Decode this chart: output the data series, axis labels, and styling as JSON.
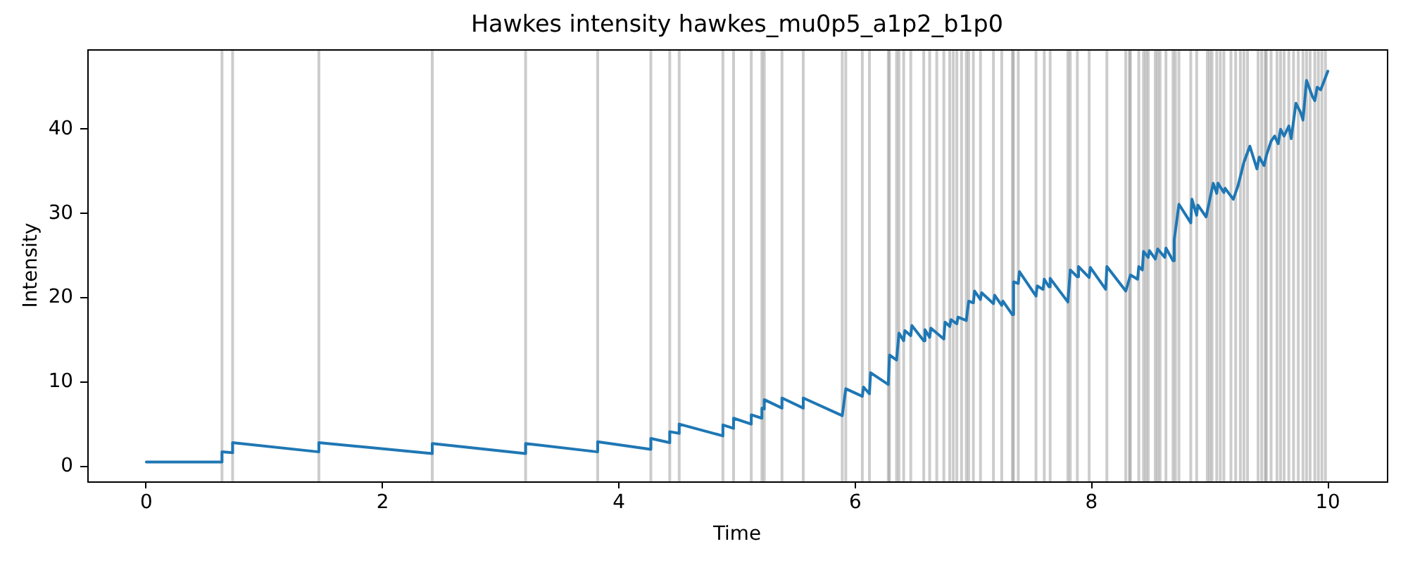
{
  "chart_data": {
    "type": "line",
    "title": "Hawkes intensity hawkes_mu0p5_a1p2_b1p0",
    "xlabel": "Time",
    "ylabel": "Intensity",
    "xlim": [
      -0.5,
      10.5
    ],
    "xticks": [
      0,
      2,
      4,
      6,
      8,
      10
    ],
    "ylim": [
      -1.8,
      49.5
    ],
    "yticks": [
      0,
      10,
      20,
      30,
      40
    ],
    "x": [
      0,
      0.64,
      0.64,
      0.73,
      0.73,
      1.46,
      1.46,
      2.42,
      2.42,
      3.21,
      3.21,
      3.82,
      3.82,
      4.27,
      4.27,
      4.43,
      4.43,
      4.51,
      4.51,
      4.88,
      4.88,
      4.97,
      4.97,
      5.12,
      5.12,
      5.21,
      5.21,
      5.23,
      5.23,
      5.38,
      5.38,
      5.56,
      5.56,
      5.89,
      5.92,
      6.06,
      6.07,
      6.12,
      6.13,
      6.28,
      6.29,
      6.35,
      6.37,
      6.41,
      6.42,
      6.47,
      6.48,
      6.58,
      6.59,
      6.63,
      6.64,
      6.75,
      6.76,
      6.8,
      6.81,
      6.86,
      6.87,
      6.94,
      6.96,
      7.0,
      7.01,
      7.06,
      7.07,
      7.17,
      7.18,
      7.24,
      7.25,
      7.33,
      7.34,
      7.38,
      7.39,
      7.53,
      7.54,
      7.59,
      7.6,
      7.64,
      7.65,
      7.8,
      7.82,
      7.88,
      7.89,
      7.98,
      7.99,
      8.12,
      8.13,
      8.29,
      8.33,
      8.39,
      8.4,
      8.43,
      8.44,
      8.48,
      8.49,
      8.54,
      8.56,
      8.62,
      8.63,
      8.69,
      8.7,
      8.74,
      8.84,
      8.85,
      8.89,
      8.9,
      8.97,
      9.03,
      9.06,
      9.07,
      9.12,
      9.13,
      9.2,
      9.24,
      9.29,
      9.34,
      9.4,
      9.42,
      9.46,
      9.48,
      9.52,
      9.55,
      9.58,
      9.6,
      9.63,
      9.67,
      9.69,
      9.73,
      9.77,
      9.79,
      9.82,
      9.87,
      9.89,
      9.91,
      9.94,
      10
    ],
    "series": [
      {
        "color": "#1f77b4",
        "values": [
          0.5,
          0.5,
          1.7,
          1.6,
          2.8,
          1.7,
          2.8,
          1.5,
          2.7,
          1.5,
          2.7,
          1.7,
          2.9,
          2.0,
          3.3,
          2.8,
          4.1,
          3.9,
          5.0,
          3.6,
          4.9,
          4.5,
          5.7,
          5.0,
          6.1,
          5.7,
          6.9,
          6.8,
          7.9,
          6.9,
          8.1,
          6.9,
          8.1,
          6.0,
          9.2,
          8.3,
          9.4,
          8.6,
          11.1,
          9.7,
          13.2,
          12.6,
          15.8,
          14.9,
          16.1,
          15.5,
          16.7,
          14.9,
          16.2,
          15.3,
          16.4,
          15.1,
          17.1,
          16.6,
          17.4,
          16.9,
          17.7,
          17.3,
          19.6,
          19.4,
          20.8,
          19.8,
          20.6,
          19.3,
          20.3,
          19.1,
          19.6,
          18.0,
          21.9,
          21.7,
          23.1,
          20.2,
          21.4,
          21.0,
          22.2,
          21.3,
          22.3,
          19.5,
          23.3,
          22.5,
          23.7,
          22.4,
          23.6,
          21.0,
          23.7,
          20.8,
          22.7,
          22.2,
          23.7,
          23.3,
          25.5,
          24.8,
          25.6,
          24.6,
          25.8,
          24.8,
          25.9,
          24.4,
          26.9,
          31.1,
          28.9,
          31.7,
          29.8,
          31.0,
          29.6,
          33.6,
          32.4,
          33.6,
          32.5,
          33.0,
          31.7,
          33.3,
          36.1,
          38.0,
          35.3,
          36.7,
          35.7,
          36.9,
          38.6,
          39.2,
          38.3,
          40.0,
          39.2,
          40.4,
          38.9,
          43.1,
          42.0,
          41.1,
          45.8,
          43.9,
          43.4,
          45.0,
          44.7,
          46.9
        ]
      }
    ],
    "ref_lines": [
      {
        "axis": "x",
        "value": 0.64
      },
      {
        "axis": "x",
        "value": 0.73
      },
      {
        "axis": "x",
        "value": 1.46
      },
      {
        "axis": "x",
        "value": 2.42
      },
      {
        "axis": "x",
        "value": 3.21
      },
      {
        "axis": "x",
        "value": 3.82
      },
      {
        "axis": "x",
        "value": 4.27
      },
      {
        "axis": "x",
        "value": 4.43
      },
      {
        "axis": "x",
        "value": 4.51
      },
      {
        "axis": "x",
        "value": 4.88
      },
      {
        "axis": "x",
        "value": 4.97
      },
      {
        "axis": "x",
        "value": 5.12
      },
      {
        "axis": "x",
        "value": 5.21
      },
      {
        "axis": "x",
        "value": 5.23
      },
      {
        "axis": "x",
        "value": 5.38
      },
      {
        "axis": "x",
        "value": 5.56
      },
      {
        "axis": "x",
        "value": 5.89
      },
      {
        "axis": "x",
        "value": 5.92
      },
      {
        "axis": "x",
        "value": 6.06
      },
      {
        "axis": "x",
        "value": 6.12
      },
      {
        "axis": "x",
        "value": 6.28
      },
      {
        "axis": "x",
        "value": 6.29
      },
      {
        "axis": "x",
        "value": 6.35
      },
      {
        "axis": "x",
        "value": 6.37
      },
      {
        "axis": "x",
        "value": 6.41
      },
      {
        "axis": "x",
        "value": 6.47
      },
      {
        "axis": "x",
        "value": 6.58
      },
      {
        "axis": "x",
        "value": 6.63
      },
      {
        "axis": "x",
        "value": 6.69
      },
      {
        "axis": "x",
        "value": 6.75
      },
      {
        "axis": "x",
        "value": 6.8
      },
      {
        "axis": "x",
        "value": 6.83
      },
      {
        "axis": "x",
        "value": 6.86
      },
      {
        "axis": "x",
        "value": 6.9
      },
      {
        "axis": "x",
        "value": 6.94
      },
      {
        "axis": "x",
        "value": 6.96
      },
      {
        "axis": "x",
        "value": 7.0
      },
      {
        "axis": "x",
        "value": 7.06
      },
      {
        "axis": "x",
        "value": 7.17
      },
      {
        "axis": "x",
        "value": 7.24
      },
      {
        "axis": "x",
        "value": 7.33
      },
      {
        "axis": "x",
        "value": 7.34
      },
      {
        "axis": "x",
        "value": 7.38
      },
      {
        "axis": "x",
        "value": 7.53
      },
      {
        "axis": "x",
        "value": 7.6
      },
      {
        "axis": "x",
        "value": 7.65
      },
      {
        "axis": "x",
        "value": 7.8
      },
      {
        "axis": "x",
        "value": 7.82
      },
      {
        "axis": "x",
        "value": 7.88
      },
      {
        "axis": "x",
        "value": 7.98
      },
      {
        "axis": "x",
        "value": 8.13
      },
      {
        "axis": "x",
        "value": 8.29
      },
      {
        "axis": "x",
        "value": 8.32
      },
      {
        "axis": "x",
        "value": 8.33
      },
      {
        "axis": "x",
        "value": 8.4
      },
      {
        "axis": "x",
        "value": 8.44
      },
      {
        "axis": "x",
        "value": 8.46
      },
      {
        "axis": "x",
        "value": 8.48
      },
      {
        "axis": "x",
        "value": 8.54
      },
      {
        "axis": "x",
        "value": 8.56
      },
      {
        "axis": "x",
        "value": 8.58
      },
      {
        "axis": "x",
        "value": 8.63
      },
      {
        "axis": "x",
        "value": 8.69
      },
      {
        "axis": "x",
        "value": 8.71
      },
      {
        "axis": "x",
        "value": 8.74
      },
      {
        "axis": "x",
        "value": 8.84
      },
      {
        "axis": "x",
        "value": 8.89
      },
      {
        "axis": "x",
        "value": 8.98
      },
      {
        "axis": "x",
        "value": 9.0
      },
      {
        "axis": "x",
        "value": 9.02
      },
      {
        "axis": "x",
        "value": 9.06
      },
      {
        "axis": "x",
        "value": 9.09
      },
      {
        "axis": "x",
        "value": 9.12
      },
      {
        "axis": "x",
        "value": 9.18
      },
      {
        "axis": "x",
        "value": 9.22
      },
      {
        "axis": "x",
        "value": 9.26
      },
      {
        "axis": "x",
        "value": 9.29
      },
      {
        "axis": "x",
        "value": 9.32
      },
      {
        "axis": "x",
        "value": 9.41
      },
      {
        "axis": "x",
        "value": 9.44
      },
      {
        "axis": "x",
        "value": 9.47
      },
      {
        "axis": "x",
        "value": 9.48
      },
      {
        "axis": "x",
        "value": 9.52
      },
      {
        "axis": "x",
        "value": 9.57
      },
      {
        "axis": "x",
        "value": 9.6
      },
      {
        "axis": "x",
        "value": 9.63
      },
      {
        "axis": "x",
        "value": 9.67
      },
      {
        "axis": "x",
        "value": 9.71
      },
      {
        "axis": "x",
        "value": 9.75
      },
      {
        "axis": "x",
        "value": 9.79
      },
      {
        "axis": "x",
        "value": 9.82
      },
      {
        "axis": "x",
        "value": 9.85
      },
      {
        "axis": "x",
        "value": 9.89
      },
      {
        "axis": "x",
        "value": 9.92
      },
      {
        "axis": "x",
        "value": 9.95
      },
      {
        "axis": "x",
        "value": 9.98
      }
    ]
  }
}
